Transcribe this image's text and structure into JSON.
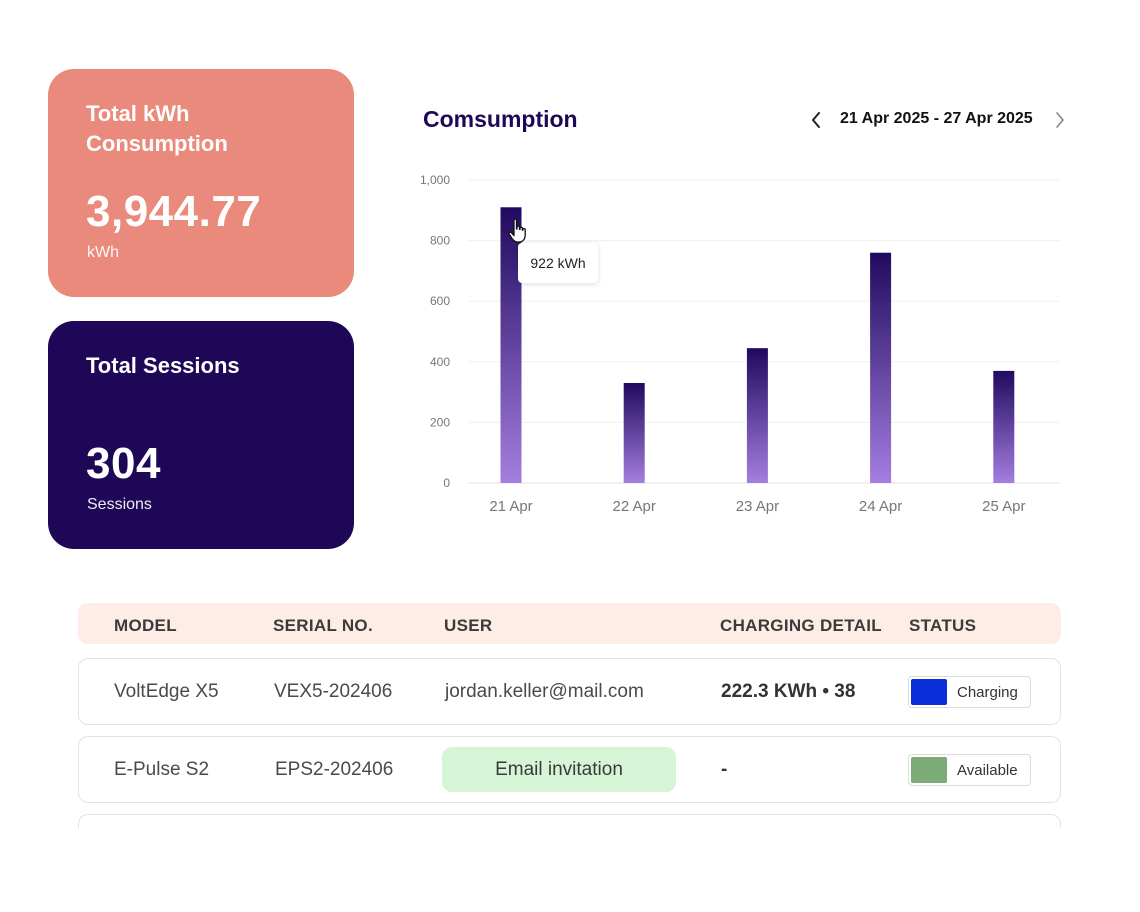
{
  "cards": {
    "kwh": {
      "title": "Total kWh Consumption",
      "value": "3,944.77",
      "unit": "kWh"
    },
    "sessions": {
      "title": "Total Sessions",
      "value": "304",
      "unit": "Sessions"
    }
  },
  "chart": {
    "title": "Comsumption",
    "range_label": "21 Apr 2025 - 27 Apr 2025",
    "tooltip": "922 kWh"
  },
  "chart_data": {
    "type": "bar",
    "title": "Comsumption",
    "categories": [
      "21 Apr",
      "22 Apr",
      "23 Apr",
      "24 Apr",
      "25 Apr"
    ],
    "values": [
      910,
      330,
      445,
      760,
      370
    ],
    "yticks": [
      0,
      200,
      400,
      600,
      800,
      1000
    ],
    "ytick_labels": [
      "0",
      "200",
      "400",
      "600",
      "800",
      "1,000"
    ],
    "ylim": [
      0,
      1000
    ],
    "xlabel": "",
    "ylabel": "",
    "grid": true,
    "bar_gradient": [
      "#200a5f",
      "#a47ee0"
    ]
  },
  "table": {
    "headers": [
      "MODEL",
      "SERIAL NO.",
      "USER",
      "CHARGING DETAIL",
      "STATUS"
    ],
    "rows": [
      {
        "model": "VoltEdge X5",
        "serial": "VEX5-202406",
        "user": "jordan.keller@mail.com",
        "detail": "222.3 KWh • 38",
        "status": "Charging",
        "status_color": "#0a2ed8"
      },
      {
        "model": "E-Pulse S2",
        "serial": "EPS2-202406",
        "user_button": "Email invitation",
        "detail": "-",
        "status": "Available",
        "status_color": "#7cab78"
      }
    ]
  },
  "icons": {
    "prev": "chevron-left-icon",
    "next": "chevron-right-icon",
    "cursor": "hand-pointer-icon"
  }
}
